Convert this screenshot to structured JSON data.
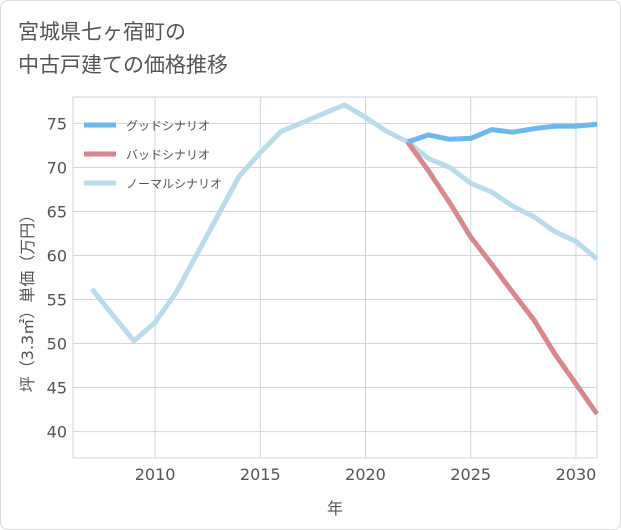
{
  "title_lines": [
    "宮城県七ヶ宿町の",
    "中古戸建ての価格推移"
  ],
  "colors": {
    "good": "#6bb8ec",
    "bad": "#d9868f",
    "normal": "#b9dcec",
    "grid": "#c9d6e2",
    "text": "#555555"
  },
  "chart_data": {
    "type": "line",
    "xlabel": "年",
    "ylabel": "坪（3.3㎡）単価（万円）",
    "xlim": [
      2006.1,
      2031
    ],
    "ylim": [
      37,
      78
    ],
    "xticks": [
      2010,
      2015,
      2020,
      2025,
      2030
    ],
    "yticks": [
      40,
      45,
      50,
      55,
      60,
      65,
      70,
      75
    ],
    "legend_position": "top-left",
    "series": [
      {
        "name": "グッドシナリオ",
        "color": "#6bb8ec",
        "x": [
          2022,
          2023,
          2024,
          2025,
          2026,
          2027,
          2028,
          2029,
          2030,
          2031
        ],
        "y": [
          72.9,
          73.7,
          73.2,
          73.3,
          74.3,
          74.0,
          74.4,
          74.7,
          74.7,
          74.9
        ]
      },
      {
        "name": "バッドシナリオ",
        "color": "#d9868f",
        "x": [
          2022,
          2023,
          2024,
          2025,
          2026,
          2027,
          2028,
          2029,
          2030,
          2031
        ],
        "y": [
          72.9,
          69.6,
          66.0,
          62.1,
          59.0,
          55.8,
          52.7,
          48.8,
          45.4,
          42.0
        ]
      },
      {
        "name": "ノーマルシナリオ",
        "color": "#b9dcec",
        "x": [
          2007,
          2008,
          2009,
          2010,
          2011,
          2012,
          2013,
          2014,
          2015,
          2016,
          2017,
          2018,
          2019,
          2020,
          2021,
          2022,
          2023,
          2024,
          2025,
          2026,
          2027,
          2028,
          2029,
          2030,
          2031
        ],
        "y": [
          56.2,
          53.2,
          50.3,
          52.4,
          55.8,
          60.2,
          64.6,
          69.0,
          71.7,
          74.1,
          75.1,
          76.1,
          77.1,
          75.7,
          74.1,
          72.9,
          71.0,
          70.0,
          68.2,
          67.2,
          65.6,
          64.4,
          62.7,
          61.6,
          59.6
        ]
      }
    ]
  }
}
